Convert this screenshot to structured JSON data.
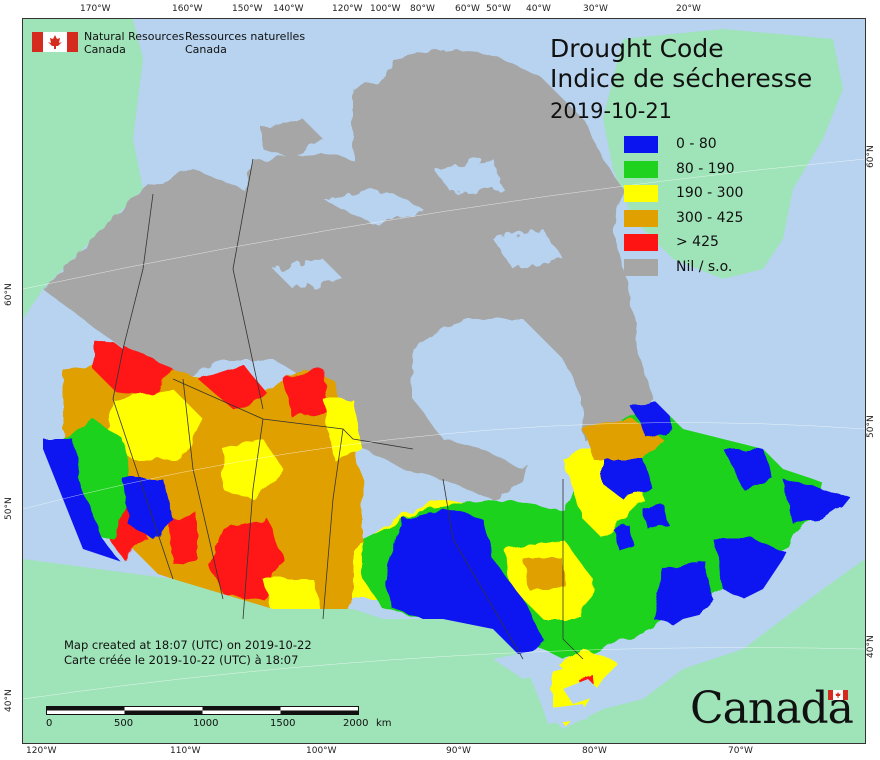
{
  "map": {
    "title_en": "Drought Code",
    "title_fr": "Indice de sécheresse",
    "date": "2019-10-21",
    "agency_en_line1": "Natural Resources",
    "agency_en_line2": "Canada",
    "agency_fr_line1": "Ressources naturelles",
    "agency_fr_line2": "Canada",
    "credit_en": "Map created at 18:07 (UTC) on 2019-10-22",
    "credit_fr": "Carte créée le 2019-10-22 (UTC) à 18:07",
    "wordmark": "Canada",
    "colors": {
      "ocean": "#b7d3ef",
      "foreign_land": "#9fe3b8",
      "no_data": "#a6a6a6"
    }
  },
  "legend": [
    {
      "label": "0 - 80",
      "color": "#0a14f0"
    },
    {
      "label": "80 - 190",
      "color": "#1ed21e"
    },
    {
      "label": "190 - 300",
      "color": "#ffff00"
    },
    {
      "label": "300 - 425",
      "color": "#e0a000"
    },
    {
      "label": "> 425",
      "color": "#ff1414"
    },
    {
      "label": "Nil / s.o.",
      "color": "#a6a6a6"
    }
  ],
  "scale_bar": {
    "labels": [
      "0",
      "500",
      "1000",
      "1500",
      "2000"
    ],
    "unit": "km"
  },
  "graticule": {
    "top_labels": [
      "170°W",
      "160°W",
      "150°W",
      "140°W",
      "120°W",
      "100°W",
      "80°W",
      "60°W",
      "50°W",
      "40°W",
      "30°W",
      "20°W"
    ],
    "bottom_labels": [
      "120°W",
      "110°W",
      "100°W",
      "90°W",
      "80°W",
      "70°W"
    ],
    "left_labels": [
      "60°N",
      "50°N",
      "40°N"
    ],
    "right_labels": [
      "60°N",
      "50°N",
      "40°N"
    ]
  }
}
